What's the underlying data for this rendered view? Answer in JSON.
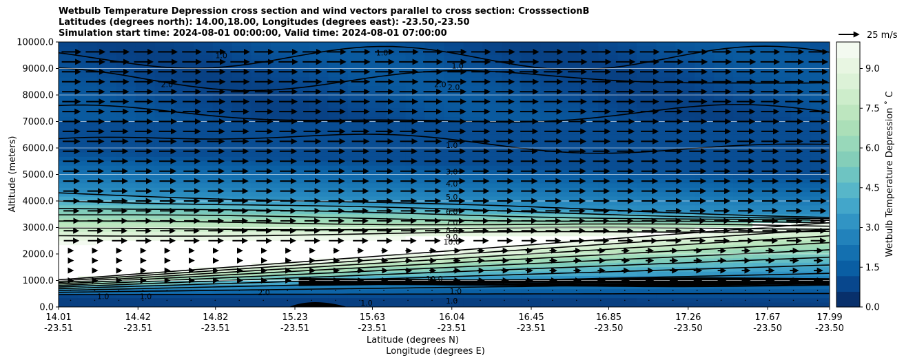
{
  "chart_data": {
    "type": "contour",
    "title": "Wetbulb Temperature Depression cross section and wind vectors parallel to cross section: CrosssectionB",
    "subtitle_lines": [
      "Latitudes (degrees north): 14.00,18.00, Longitudes (degrees east): -23.50,-23.50",
      "Simulation start time: 2024-08-01 00:00:00, Valid time: 2024-08-01 07:00:00"
    ],
    "xlabel": "Latitude (degrees N)",
    "xlabel2": "Longitude (degrees E)",
    "ylabel": "Altitude (meters)",
    "x_ticks": [
      {
        "lat": "14.01",
        "lon": "-23.51"
      },
      {
        "lat": "14.42",
        "lon": "-23.51"
      },
      {
        "lat": "14.82",
        "lon": "-23.51"
      },
      {
        "lat": "15.23",
        "lon": "-23.51"
      },
      {
        "lat": "15.63",
        "lon": "-23.51"
      },
      {
        "lat": "16.04",
        "lon": "-23.51"
      },
      {
        "lat": "16.45",
        "lon": "-23.51"
      },
      {
        "lat": "16.85",
        "lon": "-23.50"
      },
      {
        "lat": "17.26",
        "lon": "-23.50"
      },
      {
        "lat": "17.67",
        "lon": "-23.50"
      },
      {
        "lat": "17.99",
        "lon": "-23.50"
      }
    ],
    "y_ticks": [
      "0.0",
      "1000.0",
      "2000.0",
      "3000.0",
      "4000.0",
      "5000.0",
      "6000.0",
      "7000.0",
      "8000.0",
      "9000.0",
      "10000.0"
    ],
    "ylim": [
      0,
      10000
    ],
    "colorbar": {
      "label": "Wetbulb Temperature Depression ˚ C",
      "ticks": [
        "0.0",
        "1.5",
        "3.0",
        "4.5",
        "6.0",
        "7.5",
        "9.0"
      ],
      "range": [
        0,
        10
      ],
      "colors": [
        "#08306b",
        "#08478d",
        "#0a5ea3",
        "#1470b0",
        "#2282bb",
        "#3194c4",
        "#43a6ca",
        "#57b6c9",
        "#6ec4c2",
        "#84ceb9",
        "#98d8ba",
        "#abdfb8",
        "#bde6bf",
        "#cdedcb",
        "#dcf2d7",
        "#e8f6e2",
        "#f3faf0"
      ]
    },
    "contour_labels": [
      {
        "text": "1.0",
        "lat": 16.04,
        "alt": 6100
      },
      {
        "text": "3.0",
        "lat": 16.04,
        "alt": 5100
      },
      {
        "text": "4.0",
        "lat": 16.04,
        "alt": 4650
      },
      {
        "text": "5.0",
        "lat": 16.04,
        "alt": 4150
      },
      {
        "text": "6.0",
        "lat": 16.04,
        "alt": 3600
      },
      {
        "text": "7.0",
        "lat": 16.04,
        "alt": 3200
      },
      {
        "text": "8.0",
        "lat": 16.04,
        "alt": 2900
      },
      {
        "text": "9.0",
        "lat": 16.04,
        "alt": 2650
      },
      {
        "text": "10.0",
        "lat": 16.04,
        "alt": 2450
      },
      {
        "text": "1.0",
        "lat": 16.04,
        "alt": 230
      },
      {
        "text": "10.0",
        "lat": 15.95,
        "alt": 1070
      },
      {
        "text": "1.0",
        "lat": 16.06,
        "alt": 600
      },
      {
        "text": "1.0",
        "lat": 14.85,
        "alt": 9500
      },
      {
        "text": "1.0",
        "lat": 15.68,
        "alt": 9600
      },
      {
        "text": "1.0",
        "lat": 16.07,
        "alt": 9100
      },
      {
        "text": "2.0",
        "lat": 14.57,
        "alt": 8400
      },
      {
        "text": "2.0",
        "lat": 15.98,
        "alt": 8400
      },
      {
        "text": "2.0",
        "lat": 16.05,
        "alt": 8300
      },
      {
        "text": "1.0",
        "lat": 14.24,
        "alt": 400
      },
      {
        "text": "1.0",
        "lat": 14.46,
        "alt": 400
      },
      {
        "text": "2.0",
        "lat": 15.07,
        "alt": 550
      },
      {
        "text": "1.0",
        "lat": 15.6,
        "alt": 150
      }
    ],
    "wind_reference": {
      "label": "25 m/s",
      "speed": 25
    }
  }
}
